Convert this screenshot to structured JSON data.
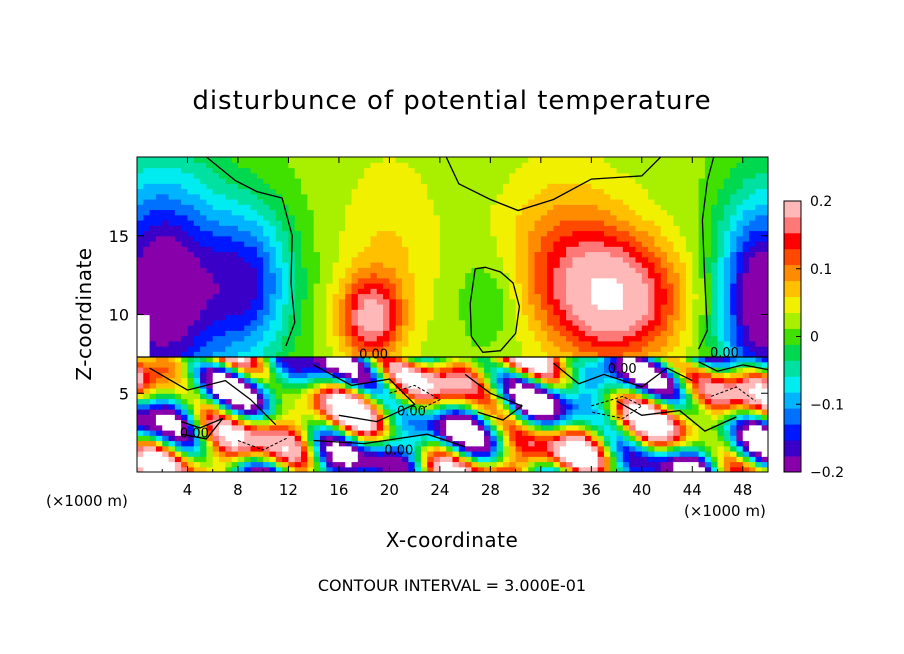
{
  "chart_data": {
    "type": "heatmap",
    "title": "disturbunce of potential temperature",
    "xlabel": "X-coordinate",
    "ylabel": "Z-coordinate",
    "x_unit_label": "(×1000 m)",
    "x_unit_label_right": "(×1000 m)",
    "xlim": [
      0,
      50
    ],
    "ylim": [
      0,
      20
    ],
    "x_ticks": [
      "4",
      "8",
      "12",
      "16",
      "20",
      "24",
      "28",
      "32",
      "36",
      "40",
      "44",
      "48"
    ],
    "y_ticks": [
      "5",
      "10",
      "15"
    ],
    "colorbar": {
      "range": [
        -0.2,
        0.2
      ],
      "tick_labels": [
        "0.2",
        "0.1",
        "0",
        "−0.1",
        "−0.2"
      ],
      "colors": [
        "#8800aa",
        "#3a00c8",
        "#0018ff",
        "#0070ff",
        "#00b4ff",
        "#00ecf0",
        "#00e0a0",
        "#00d850",
        "#40e000",
        "#a8f000",
        "#f0f000",
        "#ffc000",
        "#ff8c00",
        "#ff4800",
        "#ff0000",
        "#ff7878",
        "#ffb8b8"
      ]
    },
    "contour_labels": [
      "0.00",
      "0.00",
      "0.00",
      "0.00",
      "0.00",
      "0.00"
    ],
    "contour_interval": "CONTOUR INTERVAL = 3.000E-01"
  }
}
